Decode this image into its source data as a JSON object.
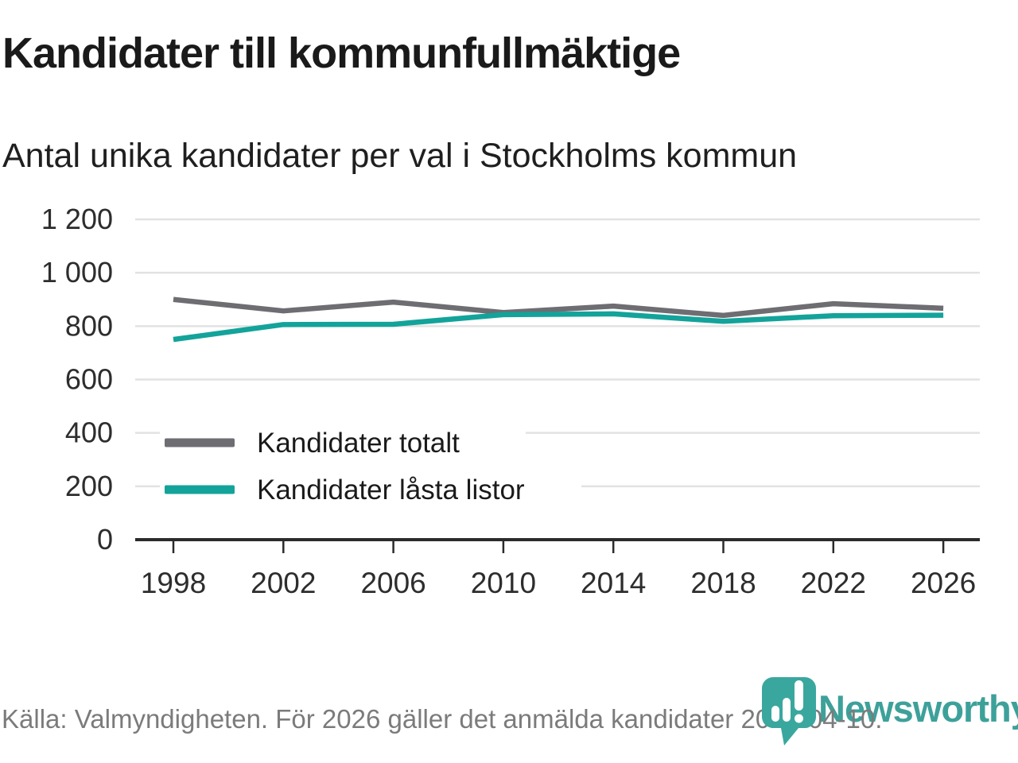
{
  "header": {
    "title": "Kandidater till kommunfullmäktige",
    "subtitle": "Antal unika kandidater per val i Stockholms kommun"
  },
  "chart_data": {
    "type": "line",
    "x": [
      1998,
      2002,
      2006,
      2010,
      2014,
      2018,
      2022,
      2026
    ],
    "xtick_labels": [
      "1998",
      "2002",
      "2006",
      "2010",
      "2014",
      "2018",
      "2022",
      "2026"
    ],
    "series": [
      {
        "name": "Kandidater totalt",
        "color": "#6d6d72",
        "values": [
          900,
          857,
          890,
          851,
          875,
          840,
          884,
          867
        ]
      },
      {
        "name": "Kandidater låsta listor",
        "color": "#13a39a",
        "values": [
          750,
          806,
          807,
          843,
          846,
          818,
          839,
          841
        ]
      }
    ],
    "ylim": [
      0,
      1200
    ],
    "yticks": [
      0,
      200,
      400,
      600,
      800,
      1000,
      1200
    ],
    "ytick_labels": [
      "0",
      "200",
      "400",
      "600",
      "800",
      "1 000",
      "1 200"
    ],
    "grid": true,
    "legend_position": "inside-left",
    "colors": {
      "gridline": "#e2e2e2",
      "axis": "#2b2b2b",
      "tick_label": "#2d2d2d",
      "legend_label": "#1a1a1a"
    }
  },
  "footer": {
    "source": "Källa: Valmyndigheten. För 2026 gäller det anmälda kandidater 2026-04-10."
  },
  "branding": {
    "name": "Newsworthy",
    "color": "#3da19a",
    "pin_color": "#3aa79f",
    "logo_icon": "bar-chart-exclamation-pin-icon"
  }
}
